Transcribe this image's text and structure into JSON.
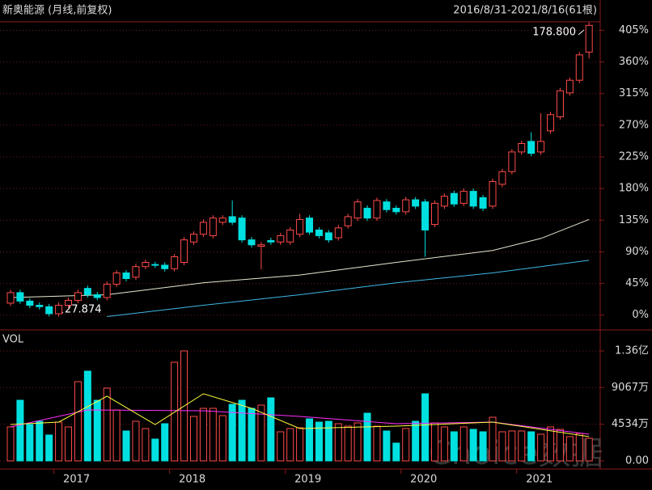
{
  "header": {
    "title": "新奥能源 (月线,前复权)",
    "range": "2016/8/31-2021/8/16(61根)",
    "watermark": "Choice数据"
  },
  "chart_data": [
    {
      "type": "candlestick",
      "annotations": [
        "178.800",
        "27.874"
      ],
      "up_color": "#ff4a4a",
      "down_color": "#00e0e0",
      "open": [
        17,
        32,
        20,
        14,
        12,
        2,
        14,
        21,
        38,
        29,
        25,
        44,
        60,
        54,
        69,
        72,
        71,
        66,
        75,
        104,
        115,
        113,
        132,
        140,
        138,
        107,
        98,
        106,
        104,
        104,
        115,
        138,
        121,
        117,
        110,
        127,
        138,
        152,
        138,
        161,
        152,
        147,
        164,
        161,
        129,
        155,
        173,
        159,
        176,
        167,
        155,
        186,
        204,
        232,
        247,
        232,
        262,
        282,
        316,
        334,
        374
      ],
      "high": [
        36,
        36,
        24,
        18,
        16,
        18,
        25,
        36,
        42,
        33,
        48,
        64,
        64,
        73,
        79,
        76,
        75,
        87,
        111,
        119,
        136,
        142,
        142,
        163,
        142,
        111,
        104,
        110,
        117,
        125,
        144,
        142,
        125,
        121,
        128,
        144,
        165,
        156,
        167,
        165,
        156,
        168,
        168,
        165,
        163,
        173,
        177,
        180,
        180,
        171,
        194,
        208,
        236,
        248,
        260,
        287,
        289,
        323,
        338,
        374,
        416
      ],
      "low": [
        13,
        16,
        10,
        8,
        -2,
        -2,
        10,
        17,
        25,
        21,
        21,
        40,
        48,
        50,
        65,
        67,
        62,
        62,
        71,
        100,
        111,
        109,
        128,
        128,
        103,
        96,
        65,
        100,
        100,
        100,
        111,
        114,
        109,
        103,
        106,
        123,
        134,
        134,
        134,
        146,
        143,
        143,
        151,
        83,
        125,
        151,
        154,
        155,
        151,
        148,
        151,
        182,
        200,
        228,
        226,
        228,
        258,
        278,
        312,
        330,
        365
      ],
      "close": [
        32,
        20,
        14,
        12,
        2,
        14,
        21,
        32,
        29,
        25,
        44,
        60,
        52,
        69,
        75,
        71,
        66,
        83,
        107,
        115,
        132,
        138,
        138,
        132,
        107,
        100,
        100,
        104,
        113,
        121,
        136,
        118,
        113,
        107,
        124,
        140,
        161,
        138,
        163,
        150,
        147,
        164,
        155,
        121,
        159,
        169,
        158,
        176,
        155,
        152,
        190,
        204,
        232,
        244,
        230,
        247,
        285,
        319,
        334,
        370,
        412
      ],
      "ma_lines": [
        {
          "color": "#e8e8d0",
          "x": [
            0,
            10,
            20,
            30,
            40,
            50,
            55,
            60
          ],
          "values": [
            25,
            29,
            46,
            57,
            75,
            92,
            109,
            136
          ]
        },
        {
          "color": "#3fb8e8",
          "x": [
            10,
            20,
            30,
            40,
            50,
            55,
            60
          ],
          "values": [
            -2,
            14,
            29,
            46,
            60,
            69,
            78
          ]
        }
      ],
      "ylim": [
        -21,
        417
      ],
      "yticks": [
        {
          "value": 0,
          "label": "0%"
        },
        {
          "value": 45,
          "label": "45%"
        },
        {
          "value": 90,
          "label": "90%"
        },
        {
          "value": 135,
          "label": "135%"
        },
        {
          "value": 180,
          "label": "180%"
        },
        {
          "value": 225,
          "label": "225%"
        },
        {
          "value": 270,
          "label": "270%"
        },
        {
          "value": 315,
          "label": "315%"
        },
        {
          "value": 360,
          "label": "360%"
        },
        {
          "value": 405,
          "label": "405%"
        }
      ],
      "grid": true
    },
    {
      "type": "volume",
      "label": "VOL",
      "categories": [
        null,
        null,
        null,
        null,
        null,
        "2017",
        null,
        null,
        null,
        null,
        null,
        null,
        null,
        null,
        null,
        null,
        null,
        "2018",
        null,
        null,
        null,
        null,
        null,
        null,
        null,
        null,
        null,
        null,
        null,
        "2019",
        null,
        null,
        null,
        null,
        null,
        null,
        null,
        null,
        null,
        null,
        null,
        "2020",
        null,
        null,
        null,
        null,
        null,
        null,
        null,
        null,
        null,
        null,
        null,
        "2021",
        null,
        null,
        null,
        null,
        null,
        null,
        null
      ],
      "values": [
        4200,
        7500,
        4500,
        4900,
        3200,
        4800,
        4200,
        9800,
        11100,
        7500,
        9000,
        6300,
        3700,
        4900,
        4000,
        2700,
        4600,
        12200,
        13600,
        5500,
        6500,
        6500,
        5600,
        7000,
        7500,
        6500,
        6900,
        7800,
        3600,
        4000,
        4100,
        5200,
        4800,
        4900,
        4600,
        4300,
        4700,
        5900,
        4300,
        3700,
        2200,
        4000,
        4900,
        8300,
        4700,
        4200,
        3600,
        4200,
        3900,
        3600,
        5400,
        3600,
        3700,
        3700,
        3600,
        3300,
        4200,
        3900,
        3000,
        3400,
        2800
      ],
      "ma_lines": [
        {
          "color": "#ff30ff",
          "x": [
            0,
            8,
            20,
            30,
            40,
            50,
            60
          ],
          "values": [
            4200,
            6300,
            6200,
            5500,
            4600,
            4800,
            3300
          ]
        },
        {
          "color": "#ffff40",
          "x": [
            0,
            5,
            10,
            15,
            20,
            25,
            30,
            40,
            50,
            60
          ],
          "values": [
            4500,
            4800,
            8000,
            4500,
            8300,
            6500,
            4000,
            4300,
            4800,
            3000
          ]
        }
      ],
      "ylim": [
        -1000,
        16000
      ],
      "yticks": [
        {
          "value": 0,
          "label": "0.00"
        },
        {
          "value": 4534,
          "label": "4534万"
        },
        {
          "value": 9067,
          "label": "9067万"
        },
        {
          "value": 13600,
          "label": "1.36亿"
        }
      ],
      "grid": true
    }
  ]
}
